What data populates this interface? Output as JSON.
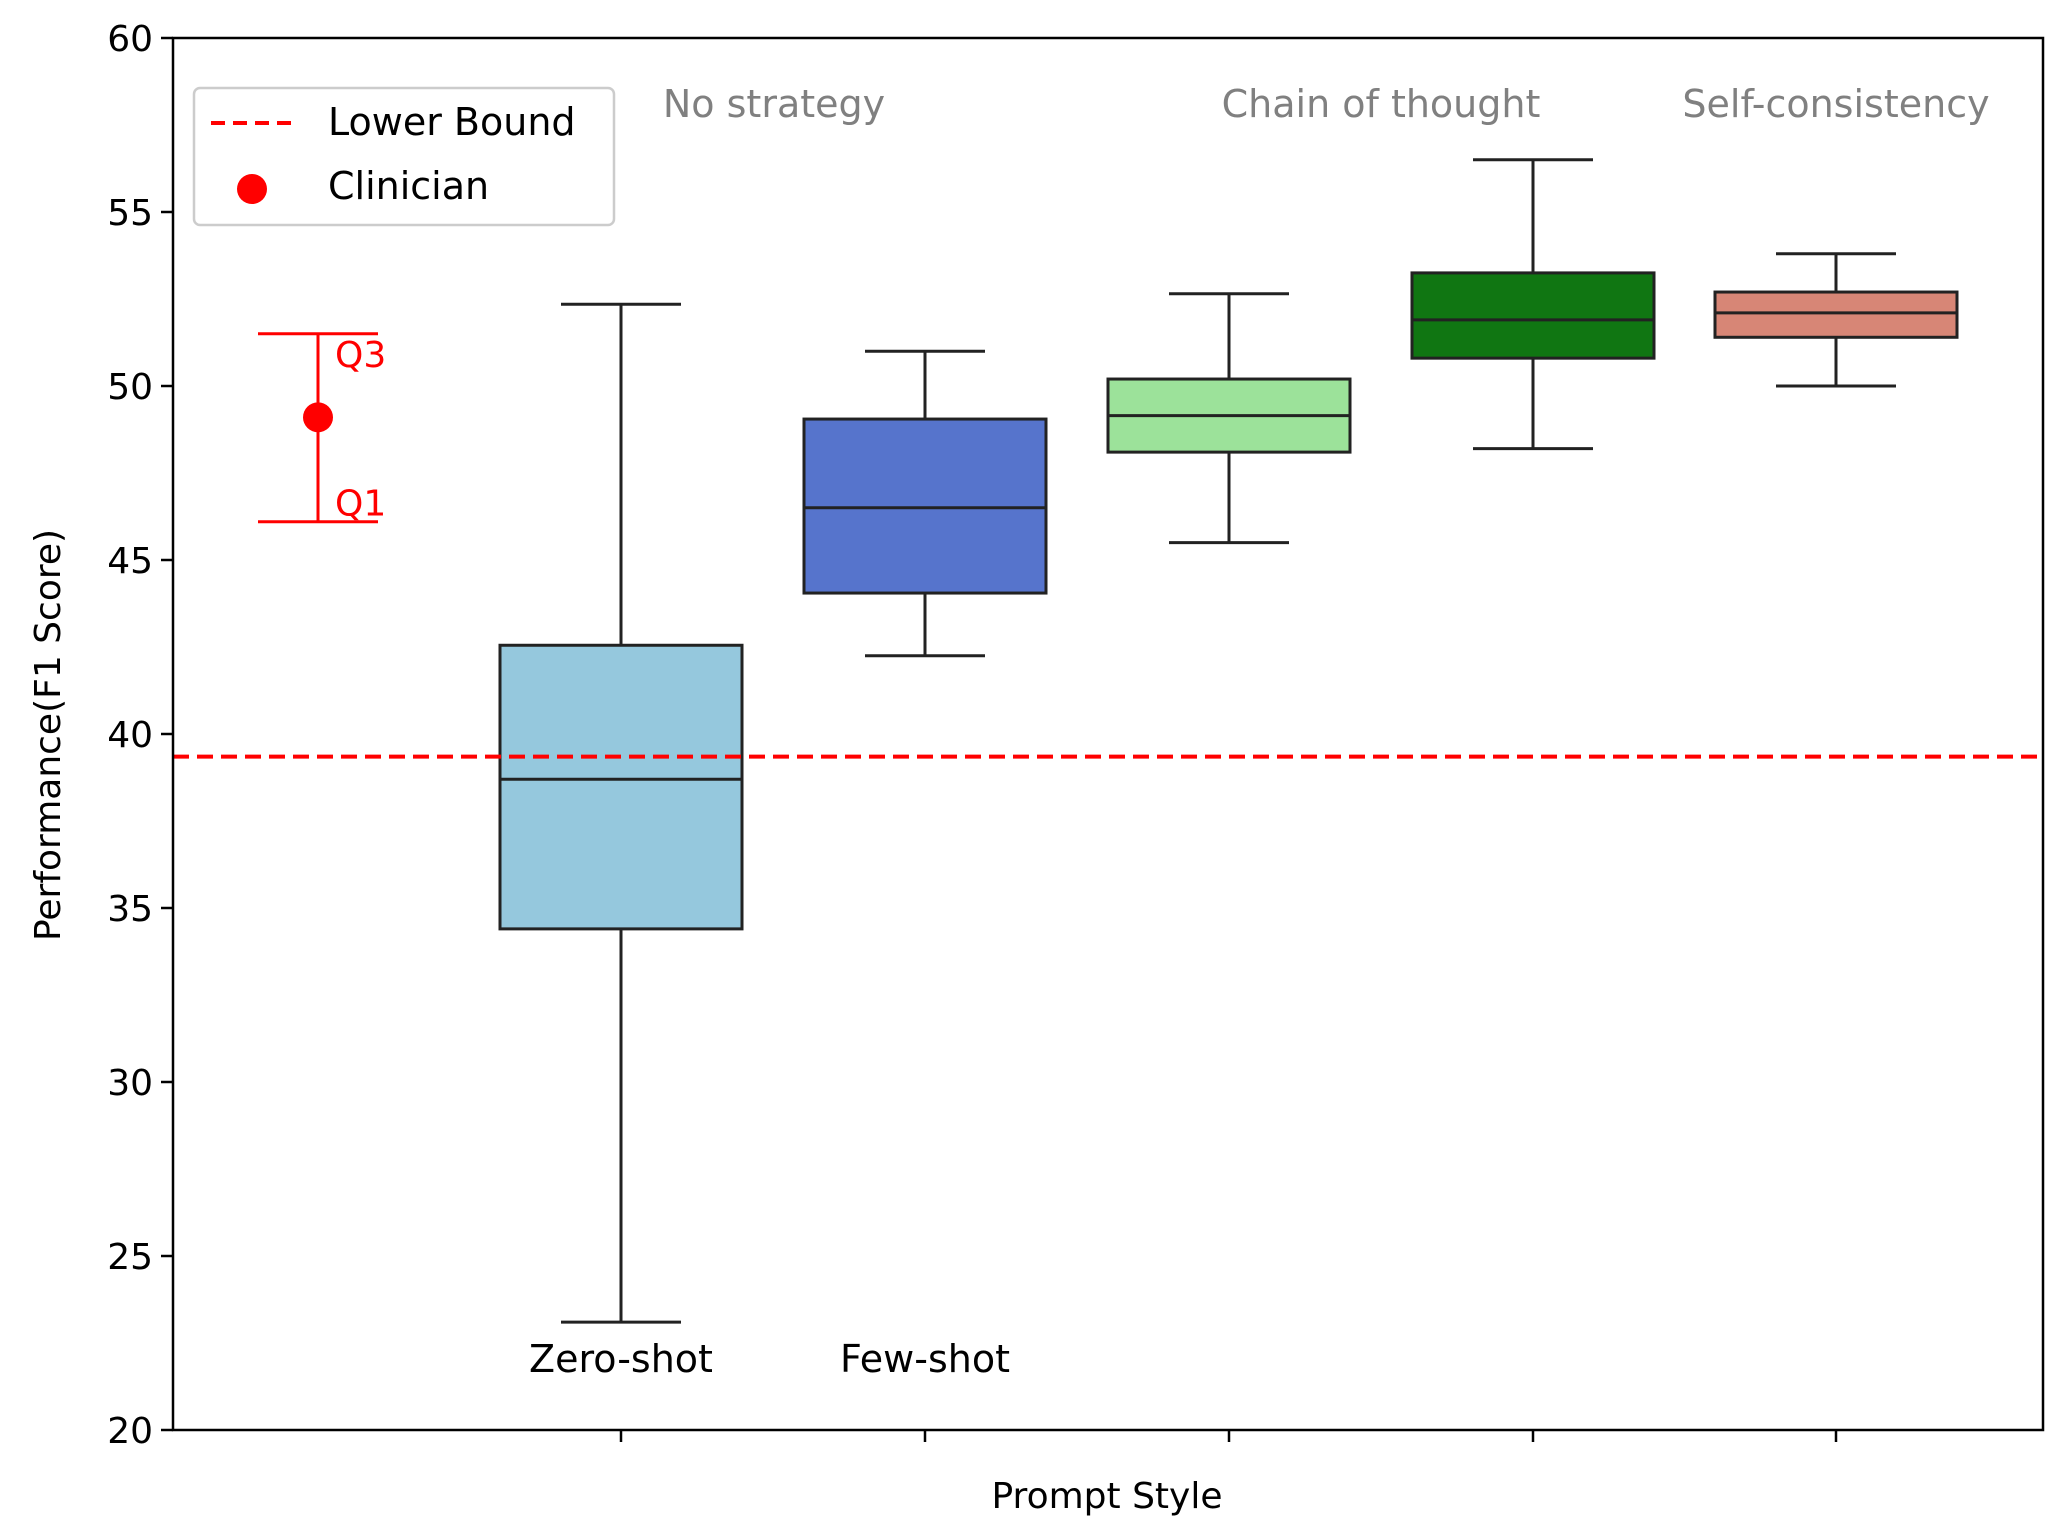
{
  "chart_data": {
    "type": "box",
    "xlabel": "Prompt Style",
    "ylabel": "Performance(F1 Score)",
    "ylim": [
      20,
      60
    ],
    "yticks": [
      20,
      25,
      30,
      35,
      40,
      45,
      50,
      55,
      60
    ],
    "grid": false,
    "legend_position": "top-left",
    "legend": [
      {
        "label": "Lower Bound",
        "marker": "dashed-line",
        "color": "#ff0000"
      },
      {
        "label": "Clinician",
        "marker": "dot",
        "color": "#ff0000"
      }
    ],
    "lower_bound": 39.35,
    "clinician": {
      "median": 49.1,
      "q1": 46.1,
      "q3": 51.5,
      "q1_label": "Q1",
      "q3_label": "Q3",
      "color": "#ff0000"
    },
    "boxes": [
      {
        "category": "Zero-shot",
        "whisker_low": 23.1,
        "q1": 34.4,
        "median": 38.7,
        "q3": 42.55,
        "whisker_high": 52.35,
        "color": "#95c8dd"
      },
      {
        "category": "Few-shot",
        "whisker_low": 42.25,
        "q1": 44.05,
        "median": 46.5,
        "q3": 49.05,
        "whisker_high": 51.0,
        "color": "#5674cc"
      },
      {
        "category": "",
        "whisker_low": 45.5,
        "q1": 48.1,
        "median": 49.15,
        "q3": 50.2,
        "whisker_high": 52.65,
        "color": "#9ce29a"
      },
      {
        "category": "",
        "whisker_low": 48.2,
        "q1": 50.8,
        "median": 51.9,
        "q3": 53.25,
        "whisker_high": 56.5,
        "color": "#107612"
      },
      {
        "category": "",
        "whisker_low": 50.0,
        "q1": 51.4,
        "median": 52.1,
        "q3": 52.7,
        "whisker_high": 53.8,
        "color": "#d78676"
      }
    ],
    "category_labels": [
      "Zero-shot",
      "Few-shot"
    ],
    "group_labels": [
      "No strategy",
      "Chain of thought",
      "Self-consistency"
    ]
  }
}
